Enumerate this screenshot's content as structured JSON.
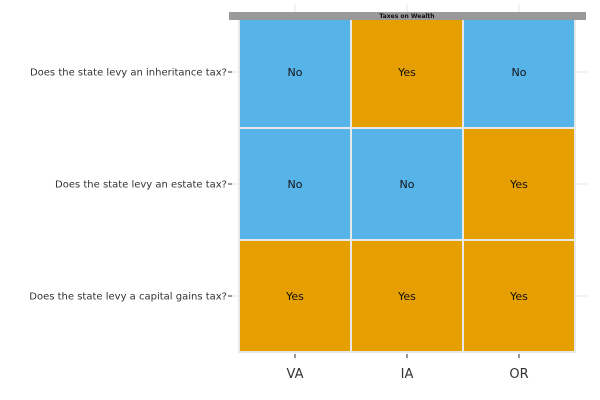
{
  "chart_data": {
    "type": "heatmap",
    "title": "Taxes on Wealth",
    "x_categories": [
      "VA",
      "IA",
      "OR"
    ],
    "y_categories": [
      "Does the state levy an inheritance tax?",
      "Does the state levy an estate tax?",
      "Does the state levy a capital gains tax?"
    ],
    "values": [
      [
        "No",
        "Yes",
        "No"
      ],
      [
        "No",
        "No",
        "Yes"
      ],
      [
        "Yes",
        "Yes",
        "Yes"
      ]
    ],
    "colors": {
      "No": "#56B4E9",
      "Yes": "#E69F00"
    },
    "grid": true,
    "legend": "none"
  },
  "theme": {
    "title_bar": "#999999",
    "grid_color": "#e6e6e6",
    "cell_border": "#e8e8e8"
  }
}
